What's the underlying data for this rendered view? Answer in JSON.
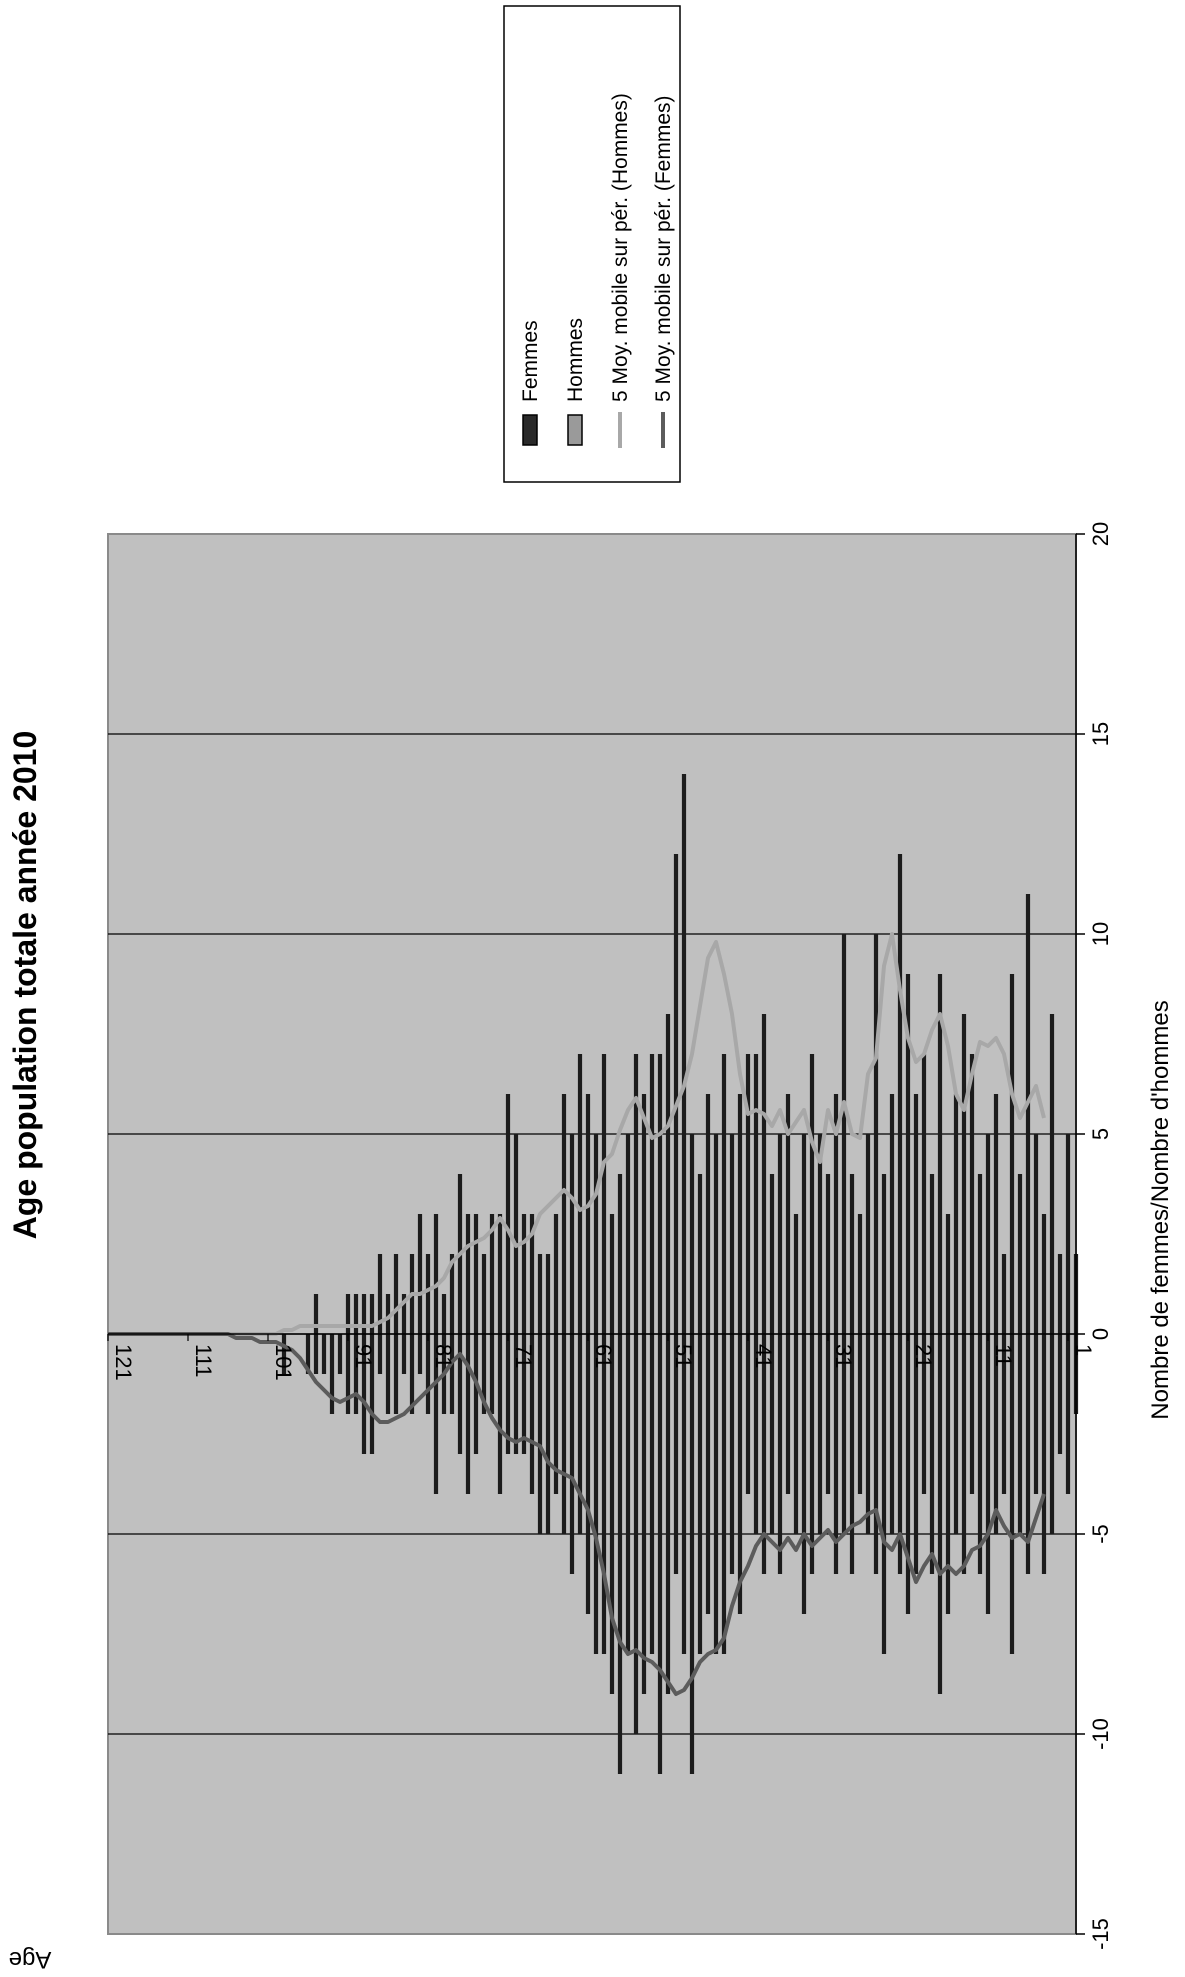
{
  "chart_data": {
    "type": "bar",
    "title": "Age population totale année 2010",
    "xlabel": "Nombre de femmes/Nombre d'hommes",
    "ylabel": "Age",
    "value_axis": {
      "min": -15,
      "max": 20,
      "ticks": [
        -15,
        -10,
        -5,
        0,
        5,
        10,
        15,
        20
      ]
    },
    "age_axis": {
      "min": 0,
      "max": 121,
      "tick_labels": [
        "121",
        "111",
        "101",
        "91",
        "81",
        "71",
        "61",
        "51",
        "41",
        "31",
        "21",
        "11",
        "1"
      ]
    },
    "grid": true,
    "legend_position": "top-right",
    "orientation": "rotated 90 degrees clockwise",
    "colors": {
      "femmes": "#1c1c1c",
      "hommes": "#1c1c1c",
      "ma_hommes": "#a8a8a8",
      "ma_femmes": "#5c5c5c",
      "plot_bg": "#c0c0c0"
    },
    "legend": [
      "Femmes",
      "Hommes",
      "5 Moy. mobile sur pér. (Hommes)",
      "5 Moy. mobile sur pér. (Femmes)"
    ],
    "ages": [
      0,
      1,
      2,
      3,
      4,
      5,
      6,
      7,
      8,
      9,
      10,
      11,
      12,
      13,
      14,
      15,
      16,
      17,
      18,
      19,
      20,
      21,
      22,
      23,
      24,
      25,
      26,
      27,
      28,
      29,
      30,
      31,
      32,
      33,
      34,
      35,
      36,
      37,
      38,
      39,
      40,
      41,
      42,
      43,
      44,
      45,
      46,
      47,
      48,
      49,
      50,
      51,
      52,
      53,
      54,
      55,
      56,
      57,
      58,
      59,
      60,
      61,
      62,
      63,
      64,
      65,
      66,
      67,
      68,
      69,
      70,
      71,
      72,
      73,
      74,
      75,
      76,
      77,
      78,
      79,
      80,
      81,
      82,
      83,
      84,
      85,
      86,
      87,
      88,
      89,
      90,
      91,
      92,
      93,
      94,
      95,
      96,
      97,
      98,
      99,
      100,
      101,
      102,
      103,
      104,
      105,
      106,
      107,
      108,
      109,
      110,
      111,
      112,
      113,
      114,
      115,
      116,
      117,
      118,
      119,
      120,
      121
    ],
    "series": [
      {
        "name": "Femmes",
        "values": [
          -2,
          -4,
          -3,
          -5,
          -6,
          -4,
          -6,
          -5,
          -8,
          -4,
          -5,
          -7,
          -6,
          -4,
          -6,
          -5,
          -7,
          -9,
          -6,
          -4,
          -6,
          -7,
          -6,
          -5,
          -8,
          -6,
          -5,
          -4,
          -6,
          -5,
          -6,
          -4,
          -5,
          -6,
          -7,
          -5,
          -4,
          -6,
          -5,
          -6,
          -5,
          -4,
          -7,
          -6,
          -8,
          -8,
          -7,
          -8,
          -11,
          -8,
          -6,
          -9,
          -11,
          -8,
          -9,
          -10,
          -8,
          -11,
          -9,
          -8,
          -8,
          -7,
          -5,
          -6,
          -5,
          -4,
          -5,
          -5,
          -4,
          -3,
          -3,
          -3,
          -4,
          -2,
          -2,
          -3,
          -4,
          -3,
          -2,
          -2,
          -4,
          -2,
          -1,
          -2,
          -1,
          -2,
          -2,
          -1,
          -3,
          -3,
          -2,
          -2,
          -1,
          -2,
          -1,
          -1,
          -1,
          0,
          0,
          -1,
          0,
          0,
          0,
          0,
          0,
          0,
          0,
          0,
          0,
          0,
          0,
          0,
          0,
          0,
          0,
          0,
          0,
          0,
          0,
          0,
          0,
          0
        ]
      },
      {
        "name": "Hommes",
        "values": [
          2,
          5,
          2,
          8,
          3,
          5,
          11,
          4,
          9,
          2,
          6,
          5,
          4,
          7,
          8,
          6,
          3,
          9,
          4,
          7,
          6,
          9,
          12,
          6,
          4,
          10,
          5,
          3,
          4,
          10,
          6,
          4,
          5,
          7,
          5,
          3,
          6,
          5,
          4,
          8,
          7,
          7,
          6,
          5,
          7,
          5,
          6,
          4,
          5,
          14,
          12,
          8,
          7,
          7,
          6,
          7,
          5,
          4,
          3,
          7,
          5,
          6,
          7,
          5,
          6,
          3,
          2,
          2,
          3,
          3,
          5,
          6,
          3,
          3,
          2,
          3,
          3,
          4,
          2,
          1,
          3,
          2,
          3,
          2,
          1,
          2,
          1,
          2,
          1,
          1,
          1,
          1,
          0,
          0,
          0,
          1,
          0,
          0,
          0,
          0,
          0,
          0,
          0,
          0,
          0,
          0,
          0,
          0,
          0,
          0,
          0,
          0,
          0,
          0,
          0,
          0,
          0,
          0,
          0,
          0,
          0,
          0
        ]
      },
      {
        "name": "5 Moy. mobile sur pér. (Hommes)",
        "values": [
          null,
          null,
          null,
          null,
          5.4,
          6.2,
          5.8,
          5.4,
          6.0,
          7.0,
          7.4,
          7.2,
          7.3,
          6.5,
          5.6,
          6.0,
          7.2,
          8.0,
          7.6,
          7.0,
          6.8,
          7.4,
          8.6,
          10.0,
          9.2,
          6.9,
          6.5,
          4.9,
          5.0,
          5.8,
          5.0,
          5.6,
          4.3,
          4.8,
          5.6,
          5.3,
          5.0,
          5.6,
          5.2,
          5.5,
          5.6,
          5.5,
          6.5,
          8.0,
          9.0,
          9.8,
          9.4,
          8.2,
          7.0,
          6.2,
          5.7,
          5.2,
          5.0,
          4.9,
          5.4,
          5.9,
          5.6,
          5.1,
          4.5,
          4.3,
          3.5,
          3.2,
          3.1,
          3.4,
          3.6,
          3.4,
          3.2,
          3.0,
          2.5,
          2.3,
          2.2,
          2.6,
          2.9,
          2.6,
          2.4,
          2.3,
          2.2,
          2.0,
          1.8,
          1.4,
          1.2,
          1.1,
          1.0,
          1.0,
          0.8,
          0.6,
          0.4,
          0.3,
          0.2,
          0.2,
          0.2,
          0.2,
          0.2,
          0.2,
          0.2,
          0.2,
          0.2,
          0.2,
          0.1,
          0.1,
          0.0,
          0.0,
          0.0,
          0.0,
          0.0,
          0.0,
          0.0,
          0.0,
          0.0,
          0.0,
          0.0,
          0.0,
          0.0,
          0.0,
          0.0,
          0.0,
          0.0,
          0.0,
          0.0,
          0.0,
          0.0,
          0.0
        ]
      },
      {
        "name": "5 Moy. mobile sur pér. (Femmes)",
        "values": [
          null,
          null,
          null,
          null,
          -4.0,
          -4.6,
          -5.2,
          -5.0,
          -5.1,
          -4.8,
          -4.4,
          -5.0,
          -5.3,
          -5.4,
          -5.8,
          -6.0,
          -5.8,
          -6.0,
          -5.5,
          -5.8,
          -6.2,
          -5.6,
          -5.0,
          -5.4,
          -5.2,
          -4.4,
          -4.5,
          -4.7,
          -4.8,
          -5.0,
          -5.2,
          -4.9,
          -5.1,
          -5.3,
          -5.0,
          -5.4,
          -5.1,
          -5.4,
          -5.2,
          -5.0,
          -5.3,
          -5.8,
          -6.2,
          -6.8,
          -7.6,
          -7.9,
          -8.0,
          -8.2,
          -8.6,
          -8.9,
          -9.0,
          -8.7,
          -8.4,
          -8.2,
          -8.1,
          -7.9,
          -8.0,
          -7.7,
          -7.1,
          -6.0,
          -5.1,
          -4.4,
          -4.0,
          -3.6,
          -3.5,
          -3.4,
          -3.2,
          -2.8,
          -2.7,
          -2.6,
          -2.7,
          -2.6,
          -2.4,
          -2.1,
          -1.7,
          -1.2,
          -0.8,
          -0.5,
          -0.7,
          -1.0,
          -1.2,
          -1.4,
          -1.6,
          -1.8,
          -2.0,
          -2.1,
          -2.2,
          -2.2,
          -2.0,
          -1.7,
          -1.5,
          -1.6,
          -1.7,
          -1.6,
          -1.4,
          -1.2,
          -0.9,
          -0.6,
          -0.4,
          -0.3,
          -0.2,
          -0.2,
          -0.2,
          -0.1,
          -0.1,
          -0.1,
          0.0,
          0.0,
          0.0,
          0.0,
          0.0,
          0.0,
          0.0,
          0.0,
          0.0,
          0.0,
          0.0,
          0.0,
          0.0,
          0.0,
          0.0,
          0.0
        ]
      }
    ]
  }
}
